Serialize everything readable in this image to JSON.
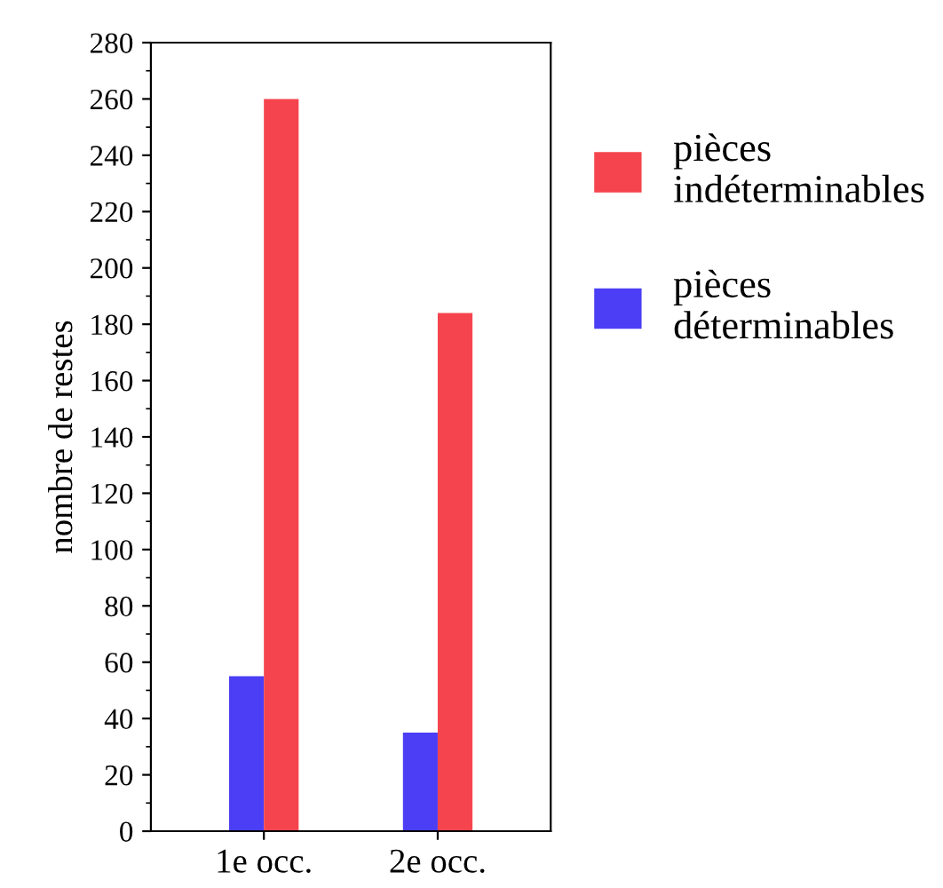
{
  "chart_data": {
    "type": "bar",
    "ylabel": "nombre de restes",
    "categories": [
      "1e occ.",
      "2e occ."
    ],
    "series": [
      {
        "name": "pièces déterminables",
        "color": "#4b3ef5",
        "values": [
          55,
          35
        ]
      },
      {
        "name": "pièces indéterminables",
        "color": "#f5444d",
        "values": [
          260,
          184
        ]
      }
    ],
    "ylim": [
      0,
      280
    ],
    "yticks": [
      0,
      20,
      40,
      60,
      80,
      100,
      120,
      140,
      160,
      180,
      200,
      220,
      240,
      260,
      280
    ],
    "grid": false,
    "legend": "right"
  }
}
